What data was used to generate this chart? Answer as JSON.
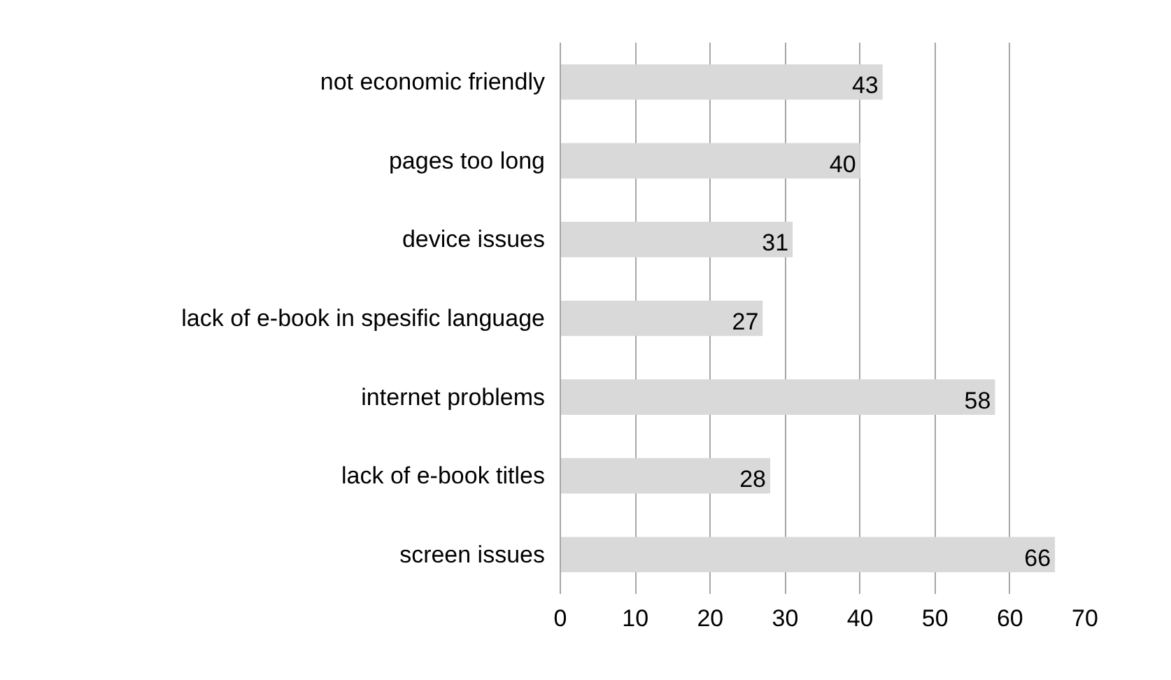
{
  "chart_data": {
    "type": "bar",
    "orientation": "horizontal",
    "categories": [
      "not economic friendly",
      "pages too long",
      "device issues",
      "lack of e-book in spesific language",
      "internet problems",
      "lack of e-book titles",
      "screen issues"
    ],
    "values": [
      43,
      40,
      31,
      27,
      58,
      28,
      66
    ],
    "color": "#d9d9d9",
    "xlim": [
      0,
      70
    ],
    "xticks": [
      0,
      10,
      20,
      30,
      40,
      50,
      60,
      70
    ],
    "grid": "x",
    "data_labels": true
  }
}
